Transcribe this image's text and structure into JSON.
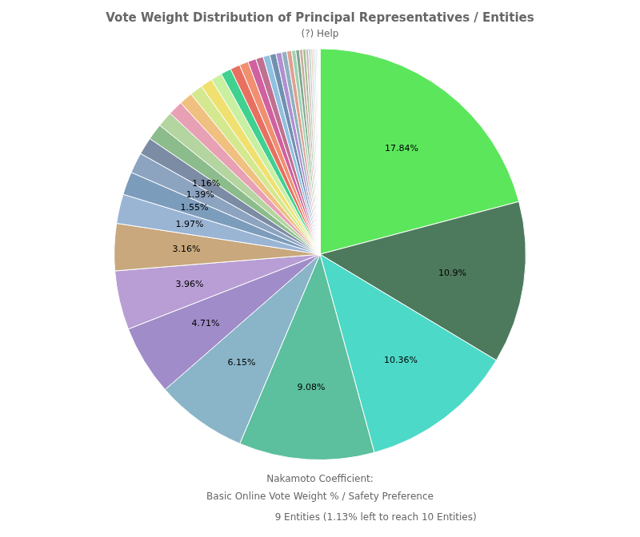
{
  "chart_data": {
    "type": "pie",
    "title": "Vote Weight Distribution of Principal Representatives / Entities",
    "subtitle": "(?) Help",
    "values": [
      17.84,
      10.9,
      10.36,
      9.08,
      6.15,
      4.71,
      3.96,
      3.16,
      1.97,
      1.55,
      1.39,
      1.16,
      1.1,
      1.05,
      0.98,
      0.9,
      0.85,
      0.8,
      0.75,
      0.7,
      0.65,
      0.6,
      0.55,
      0.5,
      0.45,
      0.42,
      0.38,
      0.35,
      0.32,
      0.28,
      0.25,
      0.22,
      0.2,
      0.18,
      0.15,
      0.13,
      0.11,
      0.09,
      0.07,
      0.06,
      0.05,
      0.04,
      0.03,
      0.02,
      0.01
    ],
    "colors": [
      "#5ce65c",
      "#4d7a5c",
      "#4dd9c8",
      "#5cbf9e",
      "#8ab5c8",
      "#a08cc8",
      "#b89ed4",
      "#c8a87c",
      "#9ab4d4",
      "#7c9cbc",
      "#8ca4c0",
      "#7c8ca4",
      "#8cbc8c",
      "#b4d4a0",
      "#e8a0b4",
      "#f0c080",
      "#d4e890",
      "#f0e070",
      "#c8f0a0",
      "#40d090",
      "#e87060",
      "#f09070",
      "#d060a0",
      "#c07090",
      "#90c0e0",
      "#7090b0",
      "#b090d0",
      "#90b0c0",
      "#e0a090",
      "#a0d0b0",
      "#80a890",
      "#c8b0a0",
      "#a0c090",
      "#d0b8c0",
      "#b8d0c8",
      "#e0d0b0",
      "#c0d8e0",
      "#d8c8d0",
      "#b0c8d8",
      "#c8d0c8",
      "#d0d8d0",
      "#d8e0d8",
      "#e0e8e0",
      "#e8f0e8",
      "#f0f8f0"
    ],
    "data_labels": true,
    "value_labels": [
      "17.84%",
      "10.9%",
      "10.36%",
      "9.08%",
      "6.15%",
      "4.71%",
      "3.96%",
      "3.16%",
      "1.97%",
      "1.55%",
      "1.39%",
      "1.16%",
      null,
      null,
      null,
      null,
      null,
      null,
      null,
      null,
      null,
      null,
      null,
      null,
      null,
      null,
      null,
      null,
      null,
      null,
      null,
      null,
      null,
      null,
      null,
      null,
      null,
      null,
      null,
      null,
      null,
      null,
      null,
      null,
      null
    ],
    "annotations": [
      "Nakamoto Coefficient:",
      "Basic Online Vote Weight % / Safety Preference",
      "9 Entities",
      " (1.13% left to reach 10 Entities)"
    ]
  }
}
